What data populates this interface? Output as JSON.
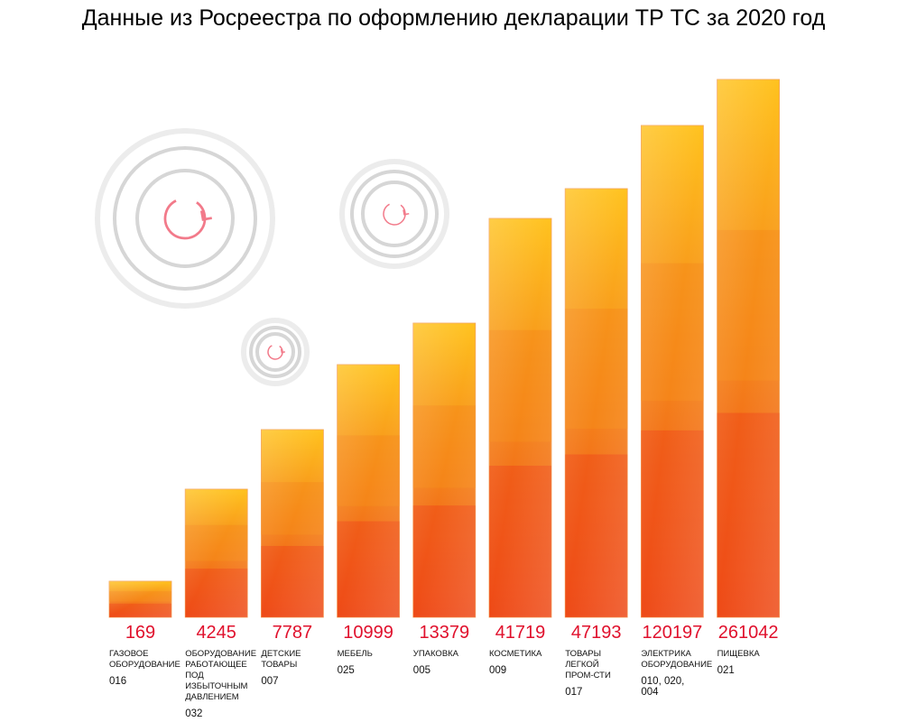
{
  "chart_data": {
    "type": "bar",
    "title": "Данные из Росреестра по оформлению декларации ТР ТС за 2020 год",
    "categories": [
      "ГАЗОВОЕ ОБОРУДОВАНИЕ",
      "ОБОРУДОВАНИЕ РАБОТАЮЩЕЕ ПОД ИЗБЫТОЧНЫМ ДАВЛЕНИЕМ",
      "ДЕТСКИЕ ТОВАРЫ",
      "МЕБЕЛЬ",
      "УПАКОВКА",
      "КОСМЕТИКА",
      "ТОВАРЫ ЛЕГКОЙ ПРОМ-СТИ",
      "ЭЛЕКТРИКА ОБОРУДОВАНИЕ",
      "ПИЩЕВКА"
    ],
    "codes": [
      "016",
      "032",
      "007",
      "025",
      "005",
      "009",
      "017",
      "010, 020, 004",
      "021"
    ],
    "values": [
      169,
      4245,
      7787,
      10999,
      13379,
      41719,
      47193,
      120197,
      261042
    ],
    "value_labels": [
      "169",
      "4245",
      "7787",
      "10999",
      "13379",
      "41719",
      "47193",
      "120197",
      "261042"
    ],
    "xlabel": "",
    "ylabel": "",
    "grid": false,
    "legend": "none",
    "colors": {
      "value_text": "#e0102c",
      "bar_top": "#ffc21e",
      "bar_mid": "#f58a1a",
      "bar_bottom": "#ee4a18"
    }
  },
  "decorations": {
    "icon": "refresh-icon",
    "ring_color": "#d4d4d4",
    "icon_color": "#f27a8a"
  }
}
